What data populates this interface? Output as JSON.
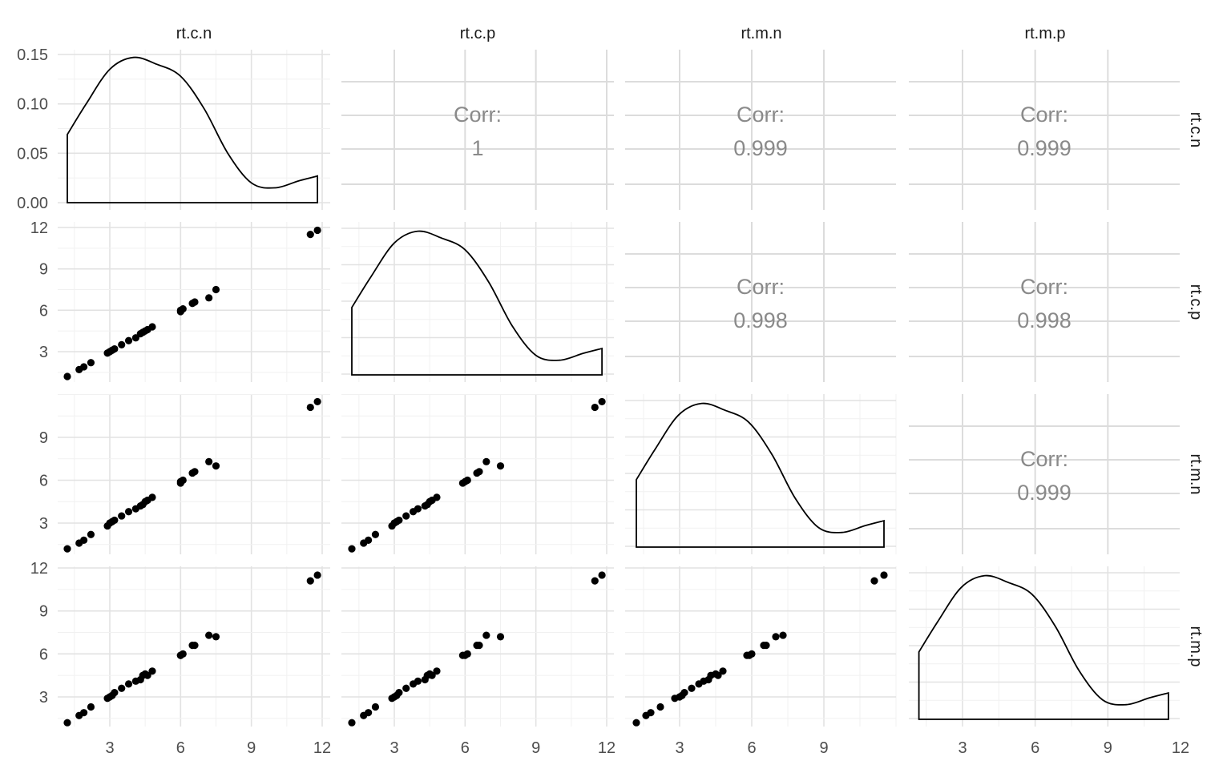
{
  "chart_data": {
    "type": "scatter",
    "layout": "pairs-matrix",
    "variables": [
      "rt.c.n",
      "rt.c.p",
      "rt.m.n",
      "rt.m.p"
    ],
    "x_ticks": [
      [
        "3",
        "6",
        "9",
        "12"
      ],
      [
        "3",
        "6",
        "9",
        "12"
      ],
      [
        "3",
        "6",
        "9"
      ],
      [
        "3",
        "6",
        "9",
        "12"
      ]
    ],
    "y_ticks": [
      [
        "0.00",
        "0.05",
        "0.10",
        "0.15"
      ],
      [
        "3",
        "6",
        "9",
        "12"
      ],
      [
        "3",
        "6",
        "9"
      ],
      [
        "3",
        "6",
        "9",
        "12"
      ]
    ],
    "correlations": [
      {
        "row": 0,
        "col": 1,
        "label": "Corr:",
        "value": "1"
      },
      {
        "row": 0,
        "col": 2,
        "label": "Corr:",
        "value": "0.999"
      },
      {
        "row": 0,
        "col": 3,
        "label": "Corr:",
        "value": "0.999"
      },
      {
        "row": 1,
        "col": 2,
        "label": "Corr:",
        "value": "0.998"
      },
      {
        "row": 1,
        "col": 3,
        "label": "Corr:",
        "value": "0.998"
      },
      {
        "row": 2,
        "col": 3,
        "label": "Corr:",
        "value": "0.999"
      }
    ],
    "density_rt_c_n": {
      "x": [
        1.2,
        2.0,
        3.0,
        4.0,
        5.0,
        6.0,
        7.0,
        8.0,
        9.0,
        10.0,
        11.0,
        11.8
      ],
      "y": [
        0.069,
        0.1,
        0.135,
        0.147,
        0.14,
        0.128,
        0.095,
        0.05,
        0.02,
        0.015,
        0.022,
        0.027
      ]
    },
    "observations": {
      "rt.c.n": [
        1.2,
        1.7,
        1.9,
        2.2,
        2.9,
        3.0,
        3.1,
        3.2,
        3.5,
        3.8,
        4.1,
        4.3,
        4.4,
        4.5,
        4.6,
        4.8,
        6.0,
        6.0,
        6.1,
        6.5,
        6.6,
        7.2,
        7.5,
        11.5,
        11.8
      ],
      "rt.c.p": [
        1.2,
        1.7,
        1.9,
        2.2,
        2.9,
        3.0,
        3.1,
        3.2,
        3.5,
        3.8,
        4.0,
        4.3,
        4.4,
        4.5,
        4.6,
        4.8,
        5.9,
        6.0,
        6.1,
        6.5,
        6.6,
        6.9,
        7.5,
        11.5,
        11.8
      ],
      "rt.m.n": [
        1.2,
        1.6,
        1.8,
        2.2,
        2.8,
        3.0,
        3.1,
        3.2,
        3.5,
        3.8,
        4.0,
        4.2,
        4.3,
        4.5,
        4.6,
        4.8,
        5.8,
        5.9,
        6.0,
        6.5,
        6.6,
        7.3,
        7.0,
        11.1,
        11.5
      ],
      "rt.m.p": [
        1.2,
        1.7,
        1.9,
        2.3,
        2.9,
        3.0,
        3.1,
        3.3,
        3.6,
        3.9,
        4.1,
        4.2,
        4.5,
        4.6,
        4.5,
        4.8,
        5.9,
        5.9,
        6.0,
        6.6,
        6.6,
        7.3,
        7.2,
        11.1,
        11.5
      ]
    }
  }
}
